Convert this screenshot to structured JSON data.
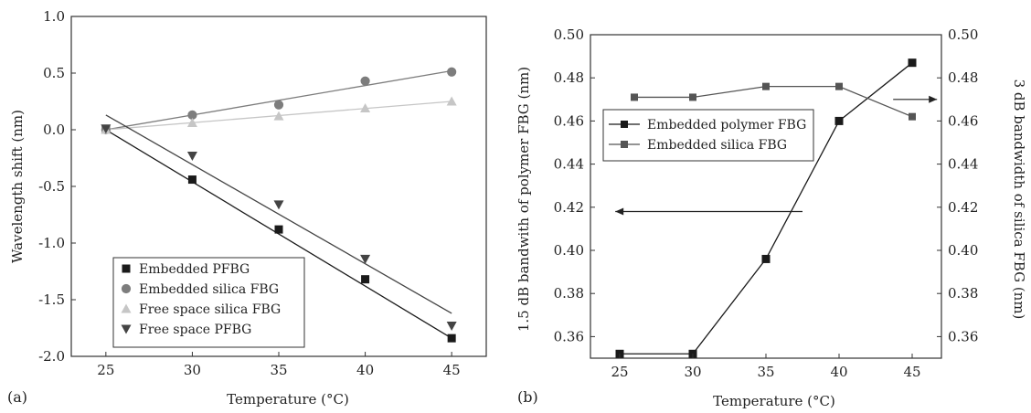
{
  "chart_data": [
    {
      "panel_label": "(a)",
      "type": "scatter",
      "xlabel": "Temperature (°C)",
      "ylabel": "Wavelength shift (nm)",
      "xlim": [
        23,
        47
      ],
      "ylim": [
        -2.0,
        1.0
      ],
      "xticks": [
        "25",
        "30",
        "35",
        "40",
        "45"
      ],
      "yticks": [
        "1.0",
        "0.5",
        "0.0",
        "-0.5",
        "-1.0",
        "-1.5",
        "-2.0"
      ],
      "legend_position": "bottom-left",
      "series": [
        {
          "name": "Embedded PFBG",
          "marker": "square",
          "color": "#1a1a1a",
          "x": [
            25,
            30,
            35,
            40,
            45
          ],
          "y": [
            0.0,
            -0.44,
            -0.88,
            -1.32,
            -1.84
          ],
          "fit": [
            0.0,
            -1.84
          ]
        },
        {
          "name": "Embedded silica FBG",
          "marker": "circle",
          "color": "#7d7d7d",
          "x": [
            25,
            30,
            35,
            40,
            45
          ],
          "y": [
            0.0,
            0.13,
            0.22,
            0.43,
            0.51
          ],
          "fit": [
            0.0,
            0.52
          ]
        },
        {
          "name": "Free space silica FBG",
          "marker": "triangle-up",
          "color": "#c6c6c6",
          "x": [
            25,
            30,
            35,
            40,
            45
          ],
          "y": [
            0.0,
            0.06,
            0.12,
            0.19,
            0.25
          ],
          "fit": [
            0.0,
            0.25
          ]
        },
        {
          "name": "Free space PFBG",
          "marker": "triangle-down",
          "color": "#444444",
          "x": [
            25,
            30,
            35,
            40,
            45
          ],
          "y": [
            0.01,
            -0.23,
            -0.66,
            -1.14,
            -1.73
          ],
          "fit": [
            0.13,
            -1.62
          ]
        }
      ]
    },
    {
      "panel_label": "(b)",
      "type": "line",
      "xlabel": "Temperature (°C)",
      "ylabel": "1.5 dB bandwith of polymer FBG (nm)",
      "ylabel_right": "3 dB bandwidth of silica FBG (nm)",
      "xlim": [
        23,
        47
      ],
      "ylim": [
        0.35,
        0.5
      ],
      "xticks": [
        "25",
        "30",
        "35",
        "40",
        "45"
      ],
      "yticks": [
        "0.50",
        "0.48",
        "0.46",
        "0.44",
        "0.42",
        "0.40",
        "0.38",
        "0.36"
      ],
      "legend_position": "top-left",
      "series": [
        {
          "name": "Embedded polymer FBG",
          "marker": "square",
          "color": "#1a1a1a",
          "axis": "left",
          "x": [
            25,
            30,
            35,
            40,
            45
          ],
          "y": [
            0.352,
            0.352,
            0.396,
            0.46,
            0.487
          ]
        },
        {
          "name": "Embedded silica FBG",
          "marker": "square",
          "color": "#555555",
          "axis": "right",
          "x": [
            26,
            30,
            35,
            40,
            45
          ],
          "y": [
            0.471,
            0.471,
            0.476,
            0.476,
            0.462
          ]
        }
      ],
      "annotations": [
        {
          "type": "arrow",
          "direction": "left",
          "from": [
            37.5,
            0.418
          ],
          "to": [
            24.7,
            0.418
          ]
        },
        {
          "type": "arrow",
          "direction": "right",
          "from": [
            43.7,
            0.47
          ],
          "to": [
            46.7,
            0.47
          ]
        }
      ]
    }
  ]
}
